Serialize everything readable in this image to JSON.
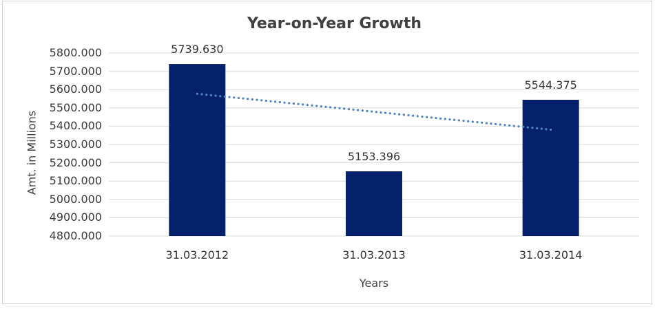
{
  "chart_data": {
    "type": "bar",
    "title": "Year-on-Year Growth",
    "xlabel": "Years",
    "ylabel": "Amt. in Millions",
    "categories": [
      "31.03.2012",
      "31.03.2013",
      "31.03.2014"
    ],
    "series": [
      {
        "name": "Amt. in Millions",
        "values": [
          5739.63,
          5153.396,
          5544.375
        ]
      }
    ],
    "data_labels": [
      "5739.630",
      "5153.396",
      "5544.375"
    ],
    "ylim": [
      4800,
      5800
    ],
    "ytick_step": 100,
    "ytick_labels": [
      "5800.000",
      "5700.000",
      "5600.000",
      "5500.000",
      "5400.000",
      "5300.000",
      "5200.000",
      "5100.000",
      "5000.000",
      "4900.000",
      "4800.000"
    ],
    "grid": true,
    "legend": "none",
    "trendline": {
      "type": "linear",
      "style": "dotted",
      "values": [
        5577,
        5479,
        5381
      ],
      "color": "#4E86C4"
    },
    "colors": {
      "bar": "#05216B",
      "gridline": "#D9D9D9",
      "frame_border": "#D2D2D2",
      "text": "#3A3A3A"
    }
  }
}
